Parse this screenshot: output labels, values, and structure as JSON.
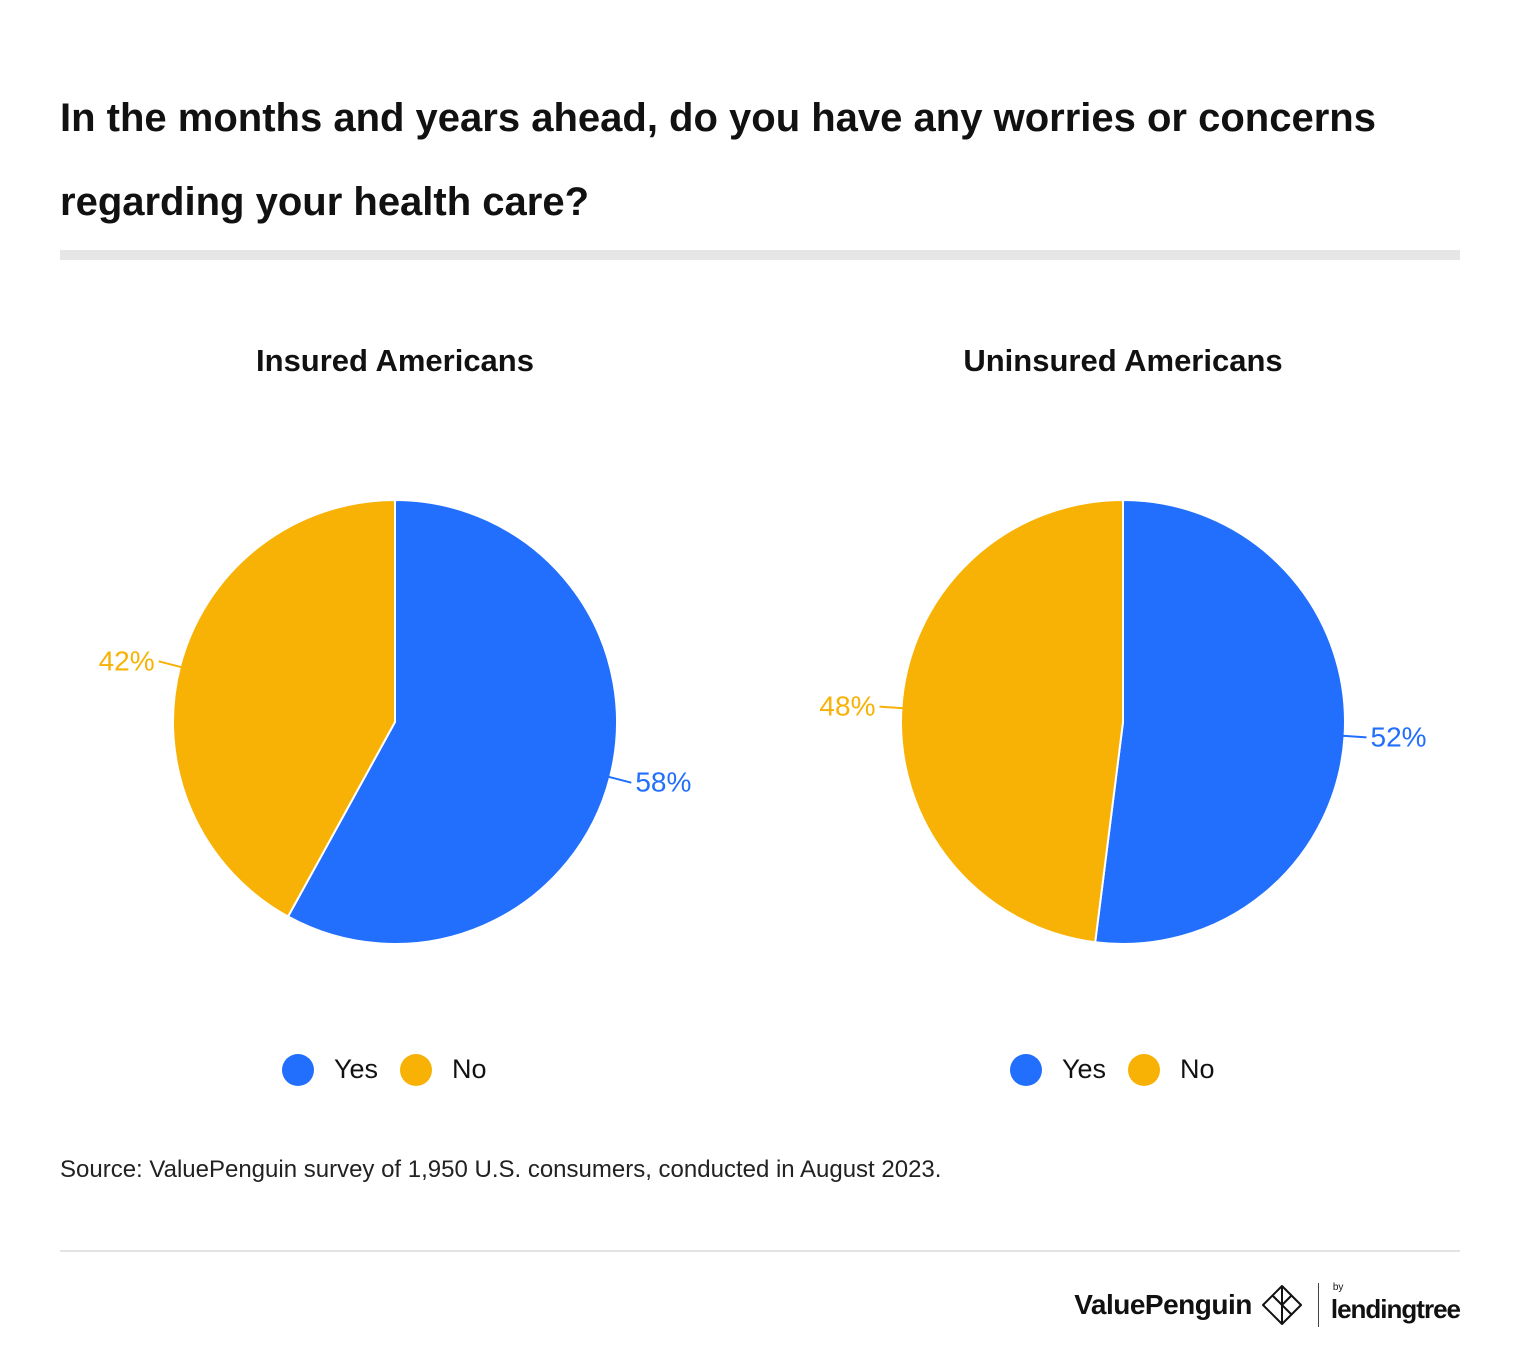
{
  "title": "In the months and years ahead, do you have any worries or concerns regarding your health care?",
  "colors": {
    "yes": "#216ffc",
    "no": "#f8b205",
    "title_rule": "#e6e6e6"
  },
  "chart_data": [
    {
      "type": "pie",
      "title": "Insured Americans",
      "slices": [
        {
          "label": "Yes",
          "value": 58,
          "display": "58%"
        },
        {
          "label": "No",
          "value": 42,
          "display": "42%"
        }
      ],
      "legend": [
        {
          "label": "Yes"
        },
        {
          "label": "No"
        }
      ],
      "legend_position": "bottom"
    },
    {
      "type": "pie",
      "title": "Uninsured Americans",
      "slices": [
        {
          "label": "Yes",
          "value": 52,
          "display": "52%"
        },
        {
          "label": "No",
          "value": 48,
          "display": "48%"
        }
      ],
      "legend": [
        {
          "label": "Yes"
        },
        {
          "label": "No"
        }
      ],
      "legend_position": "bottom"
    }
  ],
  "source": "Source: ValuePenguin survey of 1,950 U.S. consumers, conducted in August 2023.",
  "brand": {
    "name": "ValuePenguin",
    "by": "by",
    "partner": "lendingtree"
  }
}
